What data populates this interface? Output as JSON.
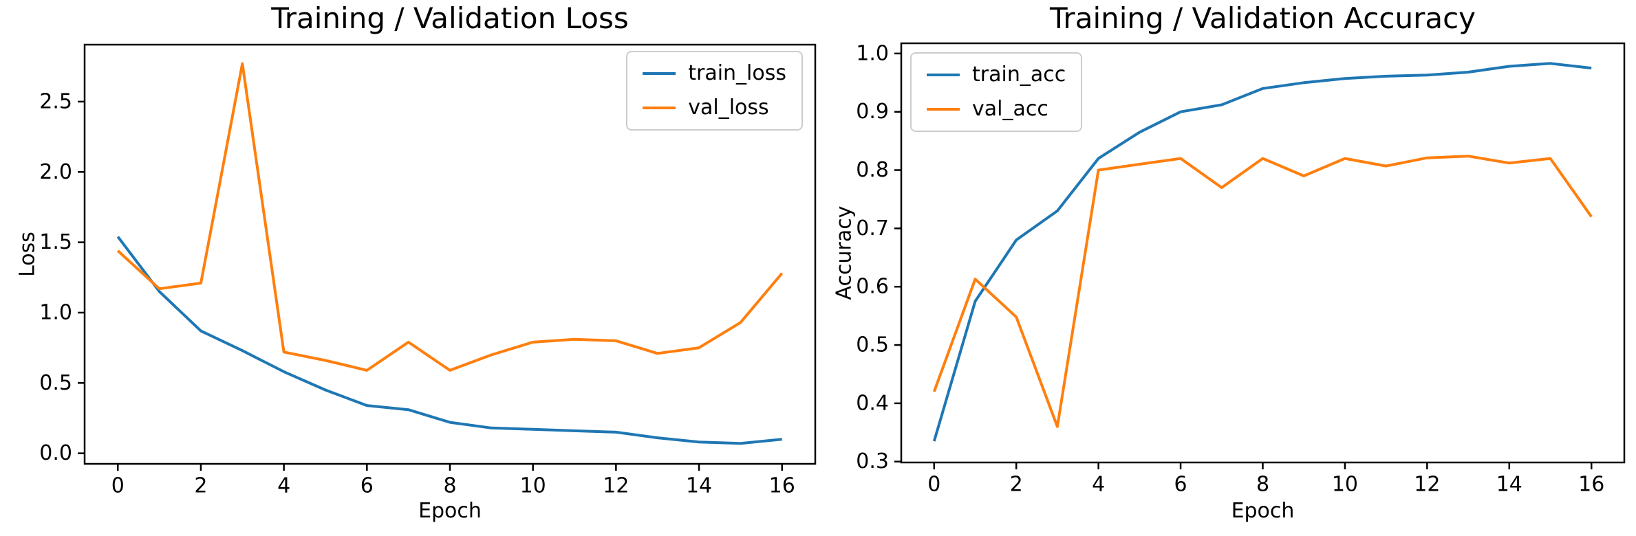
{
  "figure": {
    "background": "#ffffff",
    "axis_color": "#000000",
    "text_color": "#000000"
  },
  "chart_data": [
    {
      "type": "line",
      "title": "Training / Validation Loss",
      "xlabel": "Epoch",
      "ylabel": "Loss",
      "x": [
        0,
        1,
        2,
        3,
        4,
        5,
        6,
        7,
        8,
        9,
        10,
        11,
        12,
        13,
        14,
        15,
        16
      ],
      "series": [
        {
          "name": "train_loss",
          "color": "#1f77b4",
          "values": [
            1.54,
            1.15,
            0.87,
            0.73,
            0.58,
            0.45,
            0.34,
            0.31,
            0.22,
            0.18,
            0.17,
            0.16,
            0.15,
            0.11,
            0.08,
            0.07,
            0.1
          ]
        },
        {
          "name": "val_loss",
          "color": "#ff7f0e",
          "values": [
            1.44,
            1.17,
            1.21,
            2.77,
            0.72,
            0.66,
            0.59,
            0.79,
            0.59,
            0.7,
            0.79,
            0.81,
            0.8,
            0.71,
            0.75,
            0.93,
            1.28
          ]
        }
      ],
      "xlim": [
        -0.8,
        16.8
      ],
      "ylim": [
        -0.075,
        2.905
      ],
      "xticks": [
        0,
        2,
        4,
        6,
        8,
        10,
        12,
        14,
        16
      ],
      "xtick_labels": [
        "0",
        "2",
        "4",
        "6",
        "8",
        "10",
        "12",
        "14",
        "16"
      ],
      "yticks": [
        0.0,
        0.5,
        1.0,
        1.5,
        2.0,
        2.5
      ],
      "ytick_labels": [
        "0.0",
        "0.5",
        "1.0",
        "1.5",
        "2.0",
        "2.5"
      ],
      "grid": false,
      "legend_position": "top-right"
    },
    {
      "type": "line",
      "title": "Training / Validation Accuracy",
      "xlabel": "Epoch",
      "ylabel": "Accuracy",
      "x": [
        0,
        1,
        2,
        3,
        4,
        5,
        6,
        7,
        8,
        9,
        10,
        11,
        12,
        13,
        14,
        15,
        16
      ],
      "series": [
        {
          "name": "train_acc",
          "color": "#1f77b4",
          "values": [
            0.335,
            0.575,
            0.68,
            0.73,
            0.82,
            0.865,
            0.9,
            0.912,
            0.94,
            0.95,
            0.957,
            0.961,
            0.963,
            0.968,
            0.978,
            0.983,
            0.975
          ]
        },
        {
          "name": "val_acc",
          "color": "#ff7f0e",
          "values": [
            0.42,
            0.613,
            0.548,
            0.36,
            0.8,
            0.81,
            0.82,
            0.77,
            0.82,
            0.79,
            0.82,
            0.807,
            0.821,
            0.824,
            0.812,
            0.82,
            0.72
          ]
        }
      ],
      "xlim": [
        -0.8,
        16.8
      ],
      "ylim": [
        0.2985,
        1.0175
      ],
      "xticks": [
        0,
        2,
        4,
        6,
        8,
        10,
        12,
        14,
        16
      ],
      "xtick_labels": [
        "0",
        "2",
        "4",
        "6",
        "8",
        "10",
        "12",
        "14",
        "16"
      ],
      "yticks": [
        0.3,
        0.4,
        0.5,
        0.6,
        0.7,
        0.8,
        0.9,
        1.0
      ],
      "ytick_labels": [
        "0.3",
        "0.4",
        "0.5",
        "0.6",
        "0.7",
        "0.8",
        "0.9",
        "1.0"
      ],
      "grid": false,
      "legend_position": "top-left"
    }
  ]
}
